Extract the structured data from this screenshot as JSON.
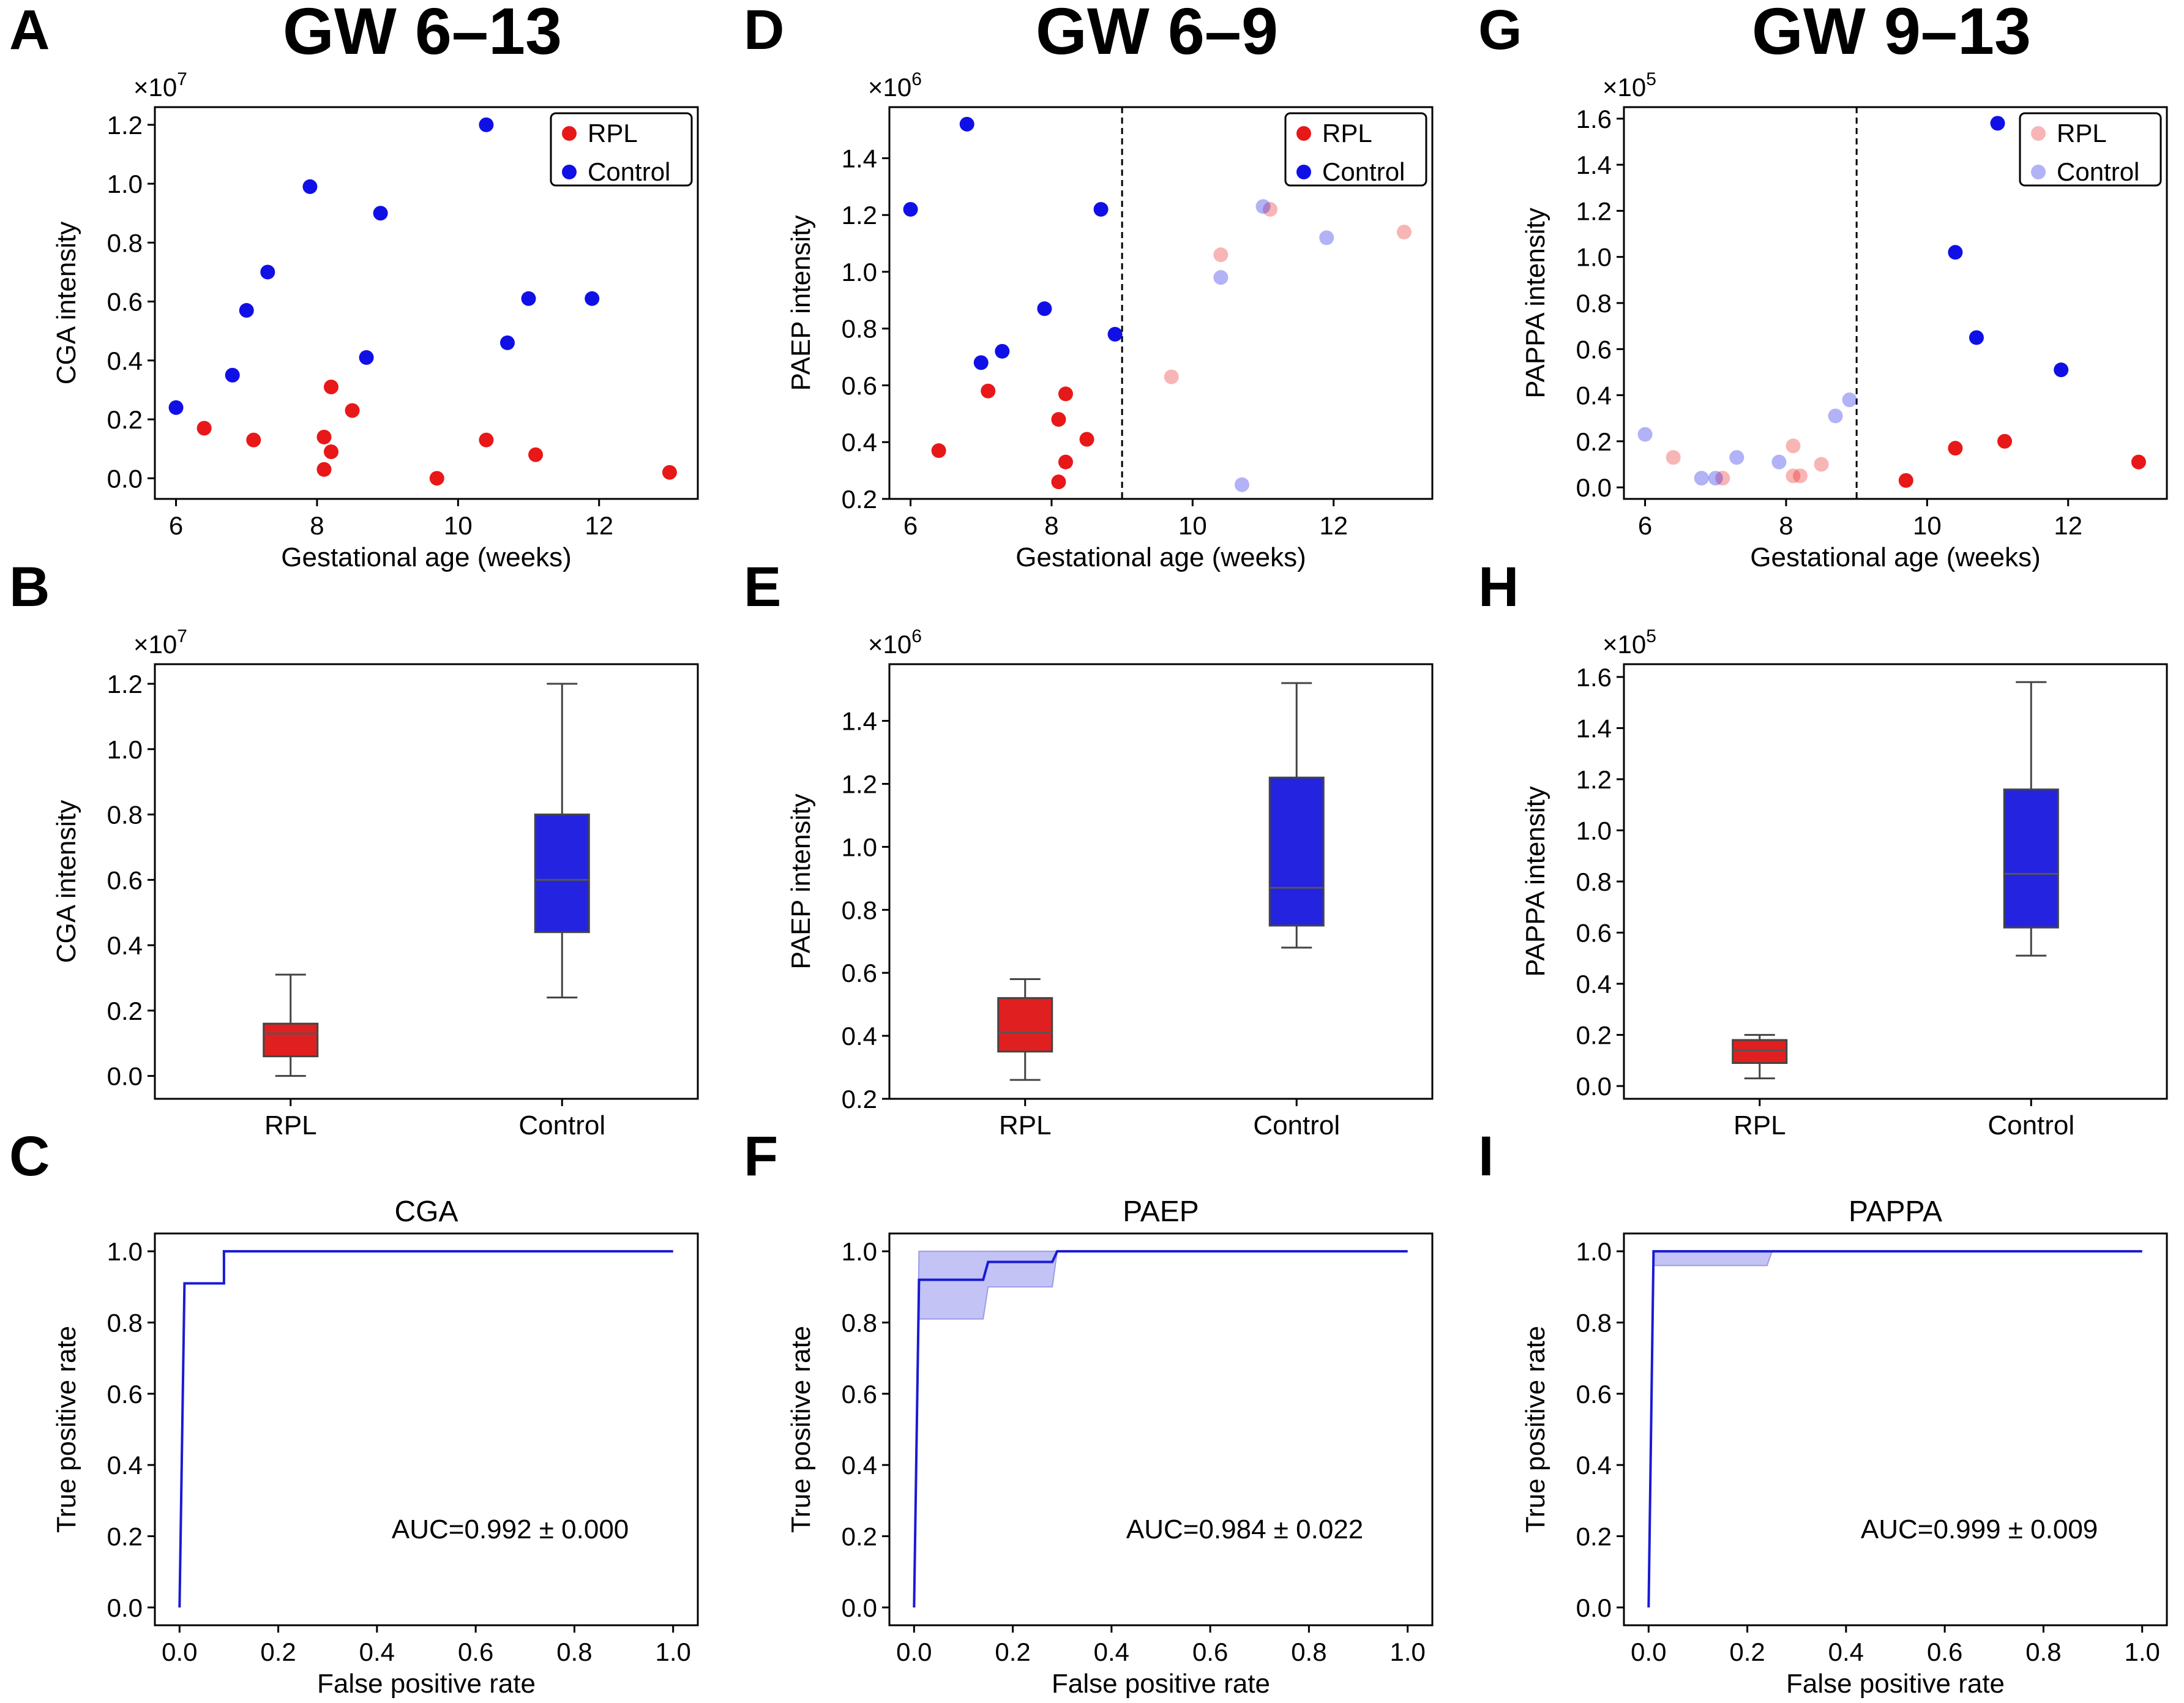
{
  "figure": {
    "columns": [
      {
        "header": "GW 6–13"
      },
      {
        "header": "GW 6–9"
      },
      {
        "header": "GW 9–13"
      }
    ],
    "colors": {
      "rpl": "#e81818",
      "control": "#1010e6",
      "rpl_box": "#e02020",
      "control_box": "#2424e0",
      "roc": "#1a1ad4",
      "roc_band": "#b4b4f4"
    }
  },
  "chart_data": [
    {
      "id": "A",
      "type": "scatter",
      "panel_label": "A",
      "xlabel": "Gestational age (weeks)",
      "ylabel": "CGA intensity",
      "multiplier": "×10",
      "exponent": "7",
      "xlim": [
        5.7,
        13.4
      ],
      "ylim": [
        -0.07,
        1.26
      ],
      "xticks": [
        6,
        8,
        10,
        12
      ],
      "yticks": [
        0.0,
        0.2,
        0.4,
        0.6,
        0.8,
        1.0,
        1.2
      ],
      "xtick_labels": [
        "6",
        "8",
        "10",
        "12"
      ],
      "ytick_labels": [
        "0.0",
        "0.2",
        "0.4",
        "0.6",
        "0.8",
        "1.0",
        "1.2"
      ],
      "legend": [
        "RPL",
        "Control"
      ],
      "legend_position": "top-right",
      "series": [
        {
          "name": "RPL",
          "color_key": "rpl",
          "points": [
            [
              6.4,
              0.17
            ],
            [
              7.1,
              0.13
            ],
            [
              8.1,
              0.14
            ],
            [
              8.1,
              0.03
            ],
            [
              8.2,
              0.09
            ],
            [
              8.2,
              0.31
            ],
            [
              8.5,
              0.23
            ],
            [
              9.7,
              0.0
            ],
            [
              10.4,
              0.13
            ],
            [
              11.1,
              0.08
            ],
            [
              13.0,
              0.02
            ]
          ]
        },
        {
          "name": "Control",
          "color_key": "control",
          "points": [
            [
              6.0,
              0.24
            ],
            [
              6.8,
              0.35
            ],
            [
              7.0,
              0.57
            ],
            [
              7.3,
              0.7
            ],
            [
              7.9,
              0.99
            ],
            [
              8.7,
              0.41
            ],
            [
              8.9,
              0.9
            ],
            [
              10.4,
              1.2
            ],
            [
              10.7,
              0.46
            ],
            [
              11.0,
              0.61
            ],
            [
              11.9,
              0.61
            ]
          ]
        }
      ]
    },
    {
      "id": "D",
      "type": "scatter",
      "panel_label": "D",
      "xlabel": "Gestational age (weeks)",
      "ylabel": "PAEP intensity",
      "multiplier": "×10",
      "exponent": "6",
      "xlim": [
        5.7,
        13.4
      ],
      "ylim": [
        0.2,
        1.58
      ],
      "xticks": [
        6,
        8,
        10,
        12
      ],
      "yticks": [
        0.2,
        0.4,
        0.6,
        0.8,
        1.0,
        1.2,
        1.4
      ],
      "xtick_labels": [
        "6",
        "8",
        "10",
        "12"
      ],
      "ytick_labels": [
        "0.2",
        "0.4",
        "0.6",
        "0.8",
        "1.0",
        "1.2",
        "1.4"
      ],
      "vline": 9,
      "legend": [
        "RPL",
        "Control"
      ],
      "legend_position": "top-right",
      "series": [
        {
          "name": "RPL",
          "color_key": "rpl",
          "points": [
            [
              6.4,
              0.37
            ],
            [
              7.1,
              0.58
            ],
            [
              8.1,
              0.26
            ],
            [
              8.1,
              0.48
            ],
            [
              8.2,
              0.33
            ],
            [
              8.2,
              0.57
            ],
            [
              8.5,
              0.41
            ]
          ]
        },
        {
          "name": "Control",
          "color_key": "control",
          "points": [
            [
              6.0,
              1.22
            ],
            [
              6.8,
              1.52
            ],
            [
              7.0,
              0.68
            ],
            [
              7.3,
              0.72
            ],
            [
              7.9,
              0.87
            ],
            [
              8.7,
              1.22
            ],
            [
              8.9,
              0.78
            ]
          ]
        },
        {
          "name": "RPL (faded)",
          "color_key": "rpl",
          "faded": true,
          "points": [
            [
              9.7,
              0.63
            ],
            [
              10.4,
              1.06
            ],
            [
              11.1,
              1.22
            ],
            [
              13.0,
              1.14
            ]
          ]
        },
        {
          "name": "Control (faded)",
          "color_key": "control",
          "faded": true,
          "points": [
            [
              10.4,
              0.98
            ],
            [
              10.7,
              0.25
            ],
            [
              11.0,
              1.23
            ],
            [
              11.9,
              1.12
            ]
          ]
        }
      ]
    },
    {
      "id": "G",
      "type": "scatter",
      "panel_label": "G",
      "xlabel": "Gestational age (weeks)",
      "ylabel": "PAPPA intensity",
      "multiplier": "×10",
      "exponent": "5",
      "xlim": [
        5.7,
        13.4
      ],
      "ylim": [
        -0.05,
        1.65
      ],
      "xticks": [
        6,
        8,
        10,
        12
      ],
      "yticks": [
        0.0,
        0.2,
        0.4,
        0.6,
        0.8,
        1.0,
        1.2,
        1.4,
        1.6
      ],
      "xtick_labels": [
        "6",
        "8",
        "10",
        "12"
      ],
      "ytick_labels": [
        "0.0",
        "0.2",
        "0.4",
        "0.6",
        "0.8",
        "1.0",
        "1.2",
        "1.4",
        "1.6"
      ],
      "vline": 9,
      "legend": [
        "RPL",
        "Control"
      ],
      "legend_faded": true,
      "legend_position": "top-right",
      "series": [
        {
          "name": "RPL (faded)",
          "color_key": "rpl",
          "faded": true,
          "points": [
            [
              6.4,
              0.13
            ],
            [
              7.1,
              0.04
            ],
            [
              8.1,
              0.05
            ],
            [
              8.1,
              0.18
            ],
            [
              8.2,
              0.05
            ],
            [
              8.5,
              0.1
            ]
          ]
        },
        {
          "name": "Control (faded)",
          "color_key": "control",
          "faded": true,
          "points": [
            [
              6.0,
              0.23
            ],
            [
              6.8,
              0.04
            ],
            [
              7.0,
              0.04
            ],
            [
              7.3,
              0.13
            ],
            [
              7.9,
              0.11
            ],
            [
              8.7,
              0.31
            ],
            [
              8.9,
              0.38
            ]
          ]
        },
        {
          "name": "RPL",
          "color_key": "rpl",
          "points": [
            [
              9.7,
              0.03
            ],
            [
              10.4,
              0.17
            ],
            [
              11.1,
              0.2
            ],
            [
              13.0,
              0.11
            ]
          ]
        },
        {
          "name": "Control",
          "color_key": "control",
          "points": [
            [
              10.4,
              1.02
            ],
            [
              10.7,
              0.65
            ],
            [
              11.0,
              1.58
            ],
            [
              11.9,
              0.51
            ]
          ]
        }
      ]
    },
    {
      "id": "B",
      "type": "box",
      "panel_label": "B",
      "ylabel": "CGA intensity",
      "multiplier": "×10",
      "exponent": "7",
      "ylim": [
        -0.07,
        1.26
      ],
      "yticks": [
        0.0,
        0.2,
        0.4,
        0.6,
        0.8,
        1.0,
        1.2
      ],
      "ytick_labels": [
        "0.0",
        "0.2",
        "0.4",
        "0.6",
        "0.8",
        "1.0",
        "1.2"
      ],
      "categories": [
        "RPL",
        "Control"
      ],
      "boxes": [
        {
          "name": "RPL",
          "color_key": "rpl_box",
          "min": 0.0,
          "q1": 0.06,
          "median": 0.13,
          "q3": 0.16,
          "max": 0.31
        },
        {
          "name": "Control",
          "color_key": "control_box",
          "min": 0.24,
          "q1": 0.44,
          "median": 0.6,
          "q3": 0.8,
          "max": 1.2
        }
      ]
    },
    {
      "id": "E",
      "type": "box",
      "panel_label": "E",
      "ylabel": "PAEP intensity",
      "multiplier": "×10",
      "exponent": "6",
      "ylim": [
        0.2,
        1.58
      ],
      "yticks": [
        0.2,
        0.4,
        0.6,
        0.8,
        1.0,
        1.2,
        1.4
      ],
      "ytick_labels": [
        "0.2",
        "0.4",
        "0.6",
        "0.8",
        "1.0",
        "1.2",
        "1.4"
      ],
      "categories": [
        "RPL",
        "Control"
      ],
      "boxes": [
        {
          "name": "RPL",
          "color_key": "rpl_box",
          "min": 0.26,
          "q1": 0.35,
          "median": 0.41,
          "q3": 0.52,
          "max": 0.58
        },
        {
          "name": "Control",
          "color_key": "control_box",
          "min": 0.68,
          "q1": 0.75,
          "median": 0.87,
          "q3": 1.22,
          "max": 1.52
        }
      ]
    },
    {
      "id": "H",
      "type": "box",
      "panel_label": "H",
      "ylabel": "PAPPA intensity",
      "multiplier": "×10",
      "exponent": "5",
      "ylim": [
        -0.05,
        1.65
      ],
      "yticks": [
        0.0,
        0.2,
        0.4,
        0.6,
        0.8,
        1.0,
        1.2,
        1.4,
        1.6
      ],
      "ytick_labels": [
        "0.0",
        "0.2",
        "0.4",
        "0.6",
        "0.8",
        "1.0",
        "1.2",
        "1.4",
        "1.6"
      ],
      "categories": [
        "RPL",
        "Control"
      ],
      "boxes": [
        {
          "name": "RPL",
          "color_key": "rpl_box",
          "min": 0.03,
          "q1": 0.09,
          "median": 0.14,
          "q3": 0.18,
          "max": 0.2
        },
        {
          "name": "Control",
          "color_key": "control_box",
          "min": 0.51,
          "q1": 0.62,
          "median": 0.83,
          "q3": 1.16,
          "max": 1.58
        }
      ]
    },
    {
      "id": "C",
      "type": "line",
      "panel_label": "C",
      "title": "CGA",
      "xlabel": "False positive rate",
      "ylabel": "True positive rate",
      "xlim": [
        -0.05,
        1.05
      ],
      "ylim": [
        -0.05,
        1.05
      ],
      "xticks": [
        0.0,
        0.2,
        0.4,
        0.6,
        0.8,
        1.0
      ],
      "yticks": [
        0.0,
        0.2,
        0.4,
        0.6,
        0.8,
        1.0
      ],
      "xtick_labels": [
        "0.0",
        "0.2",
        "0.4",
        "0.6",
        "0.8",
        "1.0"
      ],
      "ytick_labels": [
        "0.0",
        "0.2",
        "0.4",
        "0.6",
        "0.8",
        "1.0"
      ],
      "annotation": "AUC=0.992 ± 0.000",
      "roc": [
        [
          0,
          0
        ],
        [
          0.01,
          0.91
        ],
        [
          0.09,
          0.91
        ],
        [
          0.09,
          1.0
        ],
        [
          1.0,
          1.0
        ]
      ],
      "band_upper": [
        [
          0,
          0
        ],
        [
          0.01,
          0.91
        ],
        [
          0.09,
          0.91
        ],
        [
          0.09,
          1.0
        ],
        [
          1.0,
          1.0
        ]
      ],
      "band_lower": [
        [
          0,
          0
        ],
        [
          0.01,
          0.91
        ],
        [
          0.09,
          0.91
        ],
        [
          0.09,
          1.0
        ],
        [
          1.0,
          1.0
        ]
      ]
    },
    {
      "id": "F",
      "type": "line",
      "panel_label": "F",
      "title": "PAEP",
      "xlabel": "False positive rate",
      "ylabel": "True positive rate",
      "xlim": [
        -0.05,
        1.05
      ],
      "ylim": [
        -0.05,
        1.05
      ],
      "xticks": [
        0.0,
        0.2,
        0.4,
        0.6,
        0.8,
        1.0
      ],
      "yticks": [
        0.0,
        0.2,
        0.4,
        0.6,
        0.8,
        1.0
      ],
      "xtick_labels": [
        "0.0",
        "0.2",
        "0.4",
        "0.6",
        "0.8",
        "1.0"
      ],
      "ytick_labels": [
        "0.0",
        "0.2",
        "0.4",
        "0.6",
        "0.8",
        "1.0"
      ],
      "annotation": "AUC=0.984 ± 0.022",
      "roc": [
        [
          0,
          0
        ],
        [
          0.01,
          0.92
        ],
        [
          0.14,
          0.92
        ],
        [
          0.15,
          0.97
        ],
        [
          0.28,
          0.97
        ],
        [
          0.29,
          1.0
        ],
        [
          1.0,
          1.0
        ]
      ],
      "band_upper": [
        [
          0,
          0
        ],
        [
          0.01,
          1.0
        ],
        [
          1.0,
          1.0
        ]
      ],
      "band_lower": [
        [
          0,
          0
        ],
        [
          0.01,
          0.81
        ],
        [
          0.14,
          0.81
        ],
        [
          0.15,
          0.9
        ],
        [
          0.28,
          0.9
        ],
        [
          0.29,
          1.0
        ],
        [
          1.0,
          1.0
        ]
      ]
    },
    {
      "id": "I",
      "type": "line",
      "panel_label": "I",
      "title": "PAPPA",
      "xlabel": "False positive rate",
      "ylabel": "True positive rate",
      "xlim": [
        -0.05,
        1.05
      ],
      "ylim": [
        -0.05,
        1.05
      ],
      "xticks": [
        0.0,
        0.2,
        0.4,
        0.6,
        0.8,
        1.0
      ],
      "yticks": [
        0.0,
        0.2,
        0.4,
        0.6,
        0.8,
        1.0
      ],
      "xtick_labels": [
        "0.0",
        "0.2",
        "0.4",
        "0.6",
        "0.8",
        "1.0"
      ],
      "ytick_labels": [
        "0.0",
        "0.2",
        "0.4",
        "0.6",
        "0.8",
        "1.0"
      ],
      "annotation": "AUC=0.999 ± 0.009",
      "roc": [
        [
          0,
          0
        ],
        [
          0.01,
          1.0
        ],
        [
          1.0,
          1.0
        ]
      ],
      "band_upper": [
        [
          0,
          0
        ],
        [
          0.01,
          1.0
        ],
        [
          1.0,
          1.0
        ]
      ],
      "band_lower": [
        [
          0,
          0
        ],
        [
          0.01,
          0.96
        ],
        [
          0.24,
          0.96
        ],
        [
          0.25,
          1.0
        ],
        [
          1.0,
          1.0
        ]
      ]
    }
  ]
}
